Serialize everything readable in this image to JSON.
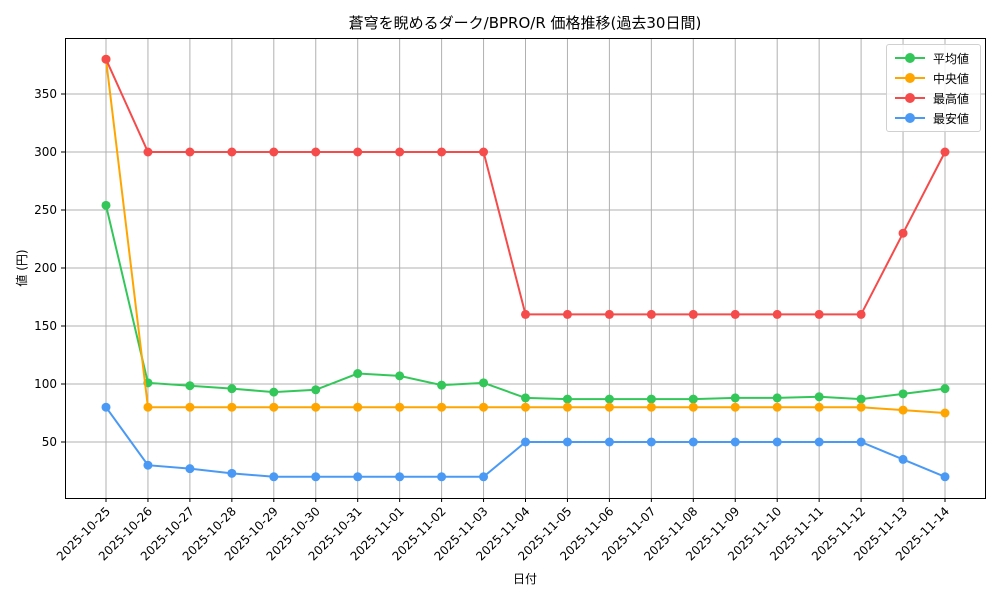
{
  "chart_data": {
    "type": "line",
    "title": "蒼穹を睨めるダーク/BPRO/R 価格推移(過去30日間)",
    "xlabel": "日付",
    "ylabel": "値 (円)",
    "x": [
      "2025-10-25",
      "2025-10-26",
      "2025-10-27",
      "2025-10-28",
      "2025-10-29",
      "2025-10-30",
      "2025-10-31",
      "2025-11-01",
      "2025-11-02",
      "2025-11-03",
      "2025-11-04",
      "2025-11-05",
      "2025-11-06",
      "2025-11-07",
      "2025-11-08",
      "2025-11-09",
      "2025-11-10",
      "2025-11-11",
      "2025-11-12",
      "2025-11-13",
      "2025-11-14"
    ],
    "yticks": [
      50,
      100,
      150,
      200,
      250,
      300,
      350
    ],
    "ylim": [
      1,
      396
    ],
    "grid": true,
    "legend_position": "upper right",
    "series": [
      {
        "name": "平均値",
        "color": "#33c75a",
        "values": [
          254,
          101,
          98.5,
          96,
          93,
          95,
          109,
          107,
          99,
          101,
          88,
          87,
          87,
          87,
          87,
          88,
          88,
          89,
          87,
          91.5,
          96
        ]
      },
      {
        "name": "中央値",
        "color": "#ffa500",
        "values": [
          380,
          80,
          80,
          80,
          80,
          80,
          80,
          80,
          80,
          80,
          80,
          80,
          80,
          80,
          80,
          80,
          80,
          80,
          80,
          77.5,
          75
        ]
      },
      {
        "name": "最高値",
        "color": "#f54b4b",
        "values": [
          380,
          300,
          300,
          300,
          300,
          300,
          300,
          300,
          300,
          300,
          160,
          160,
          160,
          160,
          160,
          160,
          160,
          160,
          160,
          230,
          300
        ]
      },
      {
        "name": "最安値",
        "color": "#4a9af5",
        "values": [
          80,
          30,
          27,
          23,
          20,
          20,
          20,
          20,
          20,
          20,
          50,
          50,
          50,
          50,
          50,
          50,
          50,
          50,
          50,
          35,
          20
        ]
      }
    ]
  }
}
